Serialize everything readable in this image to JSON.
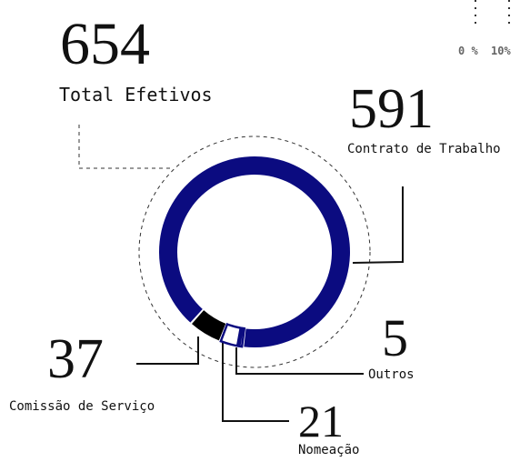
{
  "chart_data": {
    "type": "donut",
    "total": 654,
    "total_label": "Total Efetivos",
    "categories": [
      "Contrato de Trabalho",
      "Comissão de Serviço",
      "Nomeação",
      "Outros"
    ],
    "values": [
      591,
      37,
      21,
      5
    ],
    "colors": [
      "#0b0b80",
      "#000000",
      "#ffffff",
      "#ffffff"
    ],
    "scale_labels": [
      "0 %",
      "10%"
    ]
  }
}
